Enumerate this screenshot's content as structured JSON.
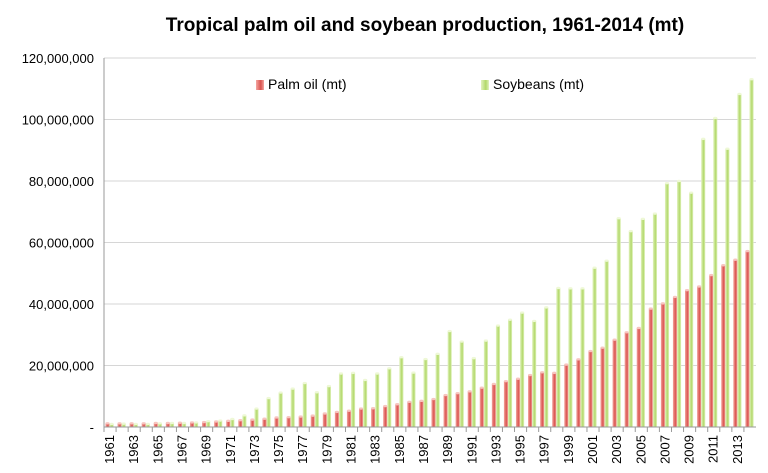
{
  "chart_data": {
    "type": "bar",
    "title": "Tropical palm oil and soybean production, 1961-2014 (mt)",
    "xlabel": "",
    "ylabel": "",
    "ylim": [
      0,
      120000000
    ],
    "yticks": [
      0,
      20000000,
      40000000,
      60000000,
      80000000,
      100000000,
      120000000
    ],
    "ytick_labels": [
      "-",
      "20,000,000",
      "40,000,000",
      "60,000,000",
      "80,000,000",
      "100,000,000",
      "120,000,000"
    ],
    "grid": true,
    "legend_position": "top",
    "categories": [
      "1961",
      "1962",
      "1963",
      "1964",
      "1965",
      "1966",
      "1967",
      "1968",
      "1969",
      "1970",
      "1971",
      "1972",
      "1973",
      "1974",
      "1975",
      "1976",
      "1977",
      "1978",
      "1979",
      "1980",
      "1981",
      "1982",
      "1983",
      "1984",
      "1985",
      "1986",
      "1987",
      "1988",
      "1989",
      "1990",
      "1991",
      "1992",
      "1993",
      "1994",
      "1995",
      "1996",
      "1997",
      "1998",
      "1999",
      "2000",
      "2001",
      "2002",
      "2003",
      "2004",
      "2005",
      "2006",
      "2007",
      "2008",
      "2009",
      "2010",
      "2011",
      "2012",
      "2013",
      "2014"
    ],
    "x_tick_labels": [
      "1961",
      "1963",
      "1965",
      "1967",
      "1969",
      "1971",
      "1973",
      "1975",
      "1977",
      "1979",
      "1981",
      "1983",
      "1985",
      "1987",
      "1989",
      "1991",
      "1993",
      "1995",
      "1997",
      "1999",
      "2001",
      "2003",
      "2005",
      "2007",
      "2009",
      "2011",
      "2013"
    ],
    "series": [
      {
        "name": "Palm oil (mt)",
        "color": "#e0605e",
        "values": [
          1200000,
          1200000,
          1200000,
          1200000,
          1300000,
          1300000,
          1400000,
          1500000,
          1600000,
          1800000,
          2000000,
          2200000,
          2400000,
          2700000,
          3100000,
          3200000,
          3400000,
          3700000,
          4400000,
          4900000,
          5300000,
          6000000,
          6100000,
          6800000,
          7400000,
          8200000,
          8500000,
          9100000,
          10400000,
          11000000,
          11600000,
          12800000,
          14000000,
          14900000,
          15700000,
          16900000,
          17800000,
          17600000,
          20300000,
          22000000,
          24700000,
          25800000,
          28400000,
          30800000,
          32200000,
          38500000,
          40200000,
          42300000,
          44500000,
          45700000,
          49400000,
          52600000,
          54400000,
          57200000
        ]
      },
      {
        "name": "Soybeans (mt)",
        "color": "#bde07a",
        "values": [
          1000000,
          1100000,
          1000000,
          1000000,
          1200000,
          1300000,
          1300000,
          1500000,
          1900000,
          2100000,
          2600000,
          3800000,
          6000000,
          9400000,
          11200000,
          12500000,
          14300000,
          11300000,
          13300000,
          17400000,
          17600000,
          15300000,
          17400000,
          19100000,
          22700000,
          17700000,
          22100000,
          23800000,
          31200000,
          27800000,
          22400000,
          28100000,
          33000000,
          34900000,
          37200000,
          34500000,
          38900000,
          45200000,
          45100000,
          45100000,
          51800000,
          54100000,
          67900000,
          63700000,
          67700000,
          69400000,
          79300000,
          80000000,
          76200000,
          93700000,
          100500000,
          90500000,
          108300000,
          113100000
        ]
      }
    ]
  }
}
